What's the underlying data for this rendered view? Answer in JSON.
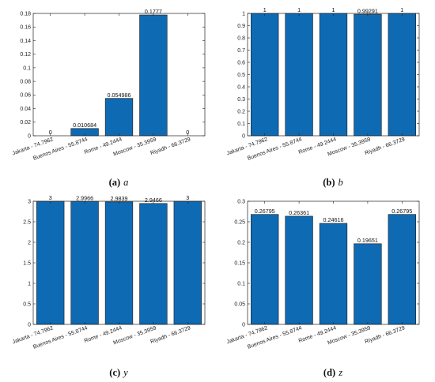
{
  "colors": {
    "bar": "#0f6ab4",
    "bar_edge": "#1a1a1a",
    "axis": "#222222"
  },
  "chart_data": [
    {
      "type": "bar",
      "caption_letter": "(a)",
      "caption_var": "a",
      "categories": [
        "Jakarta - 74.7962",
        "Buenos Aires - 55.8744",
        "Rome - 49.2444",
        "Moscow - 35.3959",
        "Riyadh - 66.3729"
      ],
      "values": [
        0,
        0.010684,
        0.054986,
        0.1777,
        0
      ],
      "data_labels": [
        "0",
        "0.010684",
        "0.054986",
        "0.1777",
        "0"
      ],
      "ylim": [
        0,
        0.18
      ],
      "yticks": [
        0,
        0.02,
        0.04,
        0.06,
        0.08,
        0.1,
        0.12,
        0.14,
        0.16,
        0.18
      ],
      "ytick_labels": [
        "0",
        "0.02",
        "0.04",
        "0.06",
        "0.08",
        "0.1",
        "0.12",
        "0.14",
        "0.16",
        "0.18"
      ],
      "grid": false
    },
    {
      "type": "bar",
      "caption_letter": "(b)",
      "caption_var": "b",
      "categories": [
        "Jakarta - 74.7962",
        "Buenos Aires - 55.8744",
        "Rome - 49.2444",
        "Moscow - 35.3959",
        "Riyadh - 66.3729"
      ],
      "values": [
        1,
        1,
        1,
        0.99291,
        1
      ],
      "data_labels": [
        "1",
        "1",
        "1",
        "0.99291",
        "1"
      ],
      "ylim": [
        0,
        1
      ],
      "yticks": [
        0,
        0.1,
        0.2,
        0.3,
        0.4,
        0.5,
        0.6,
        0.7,
        0.8,
        0.9,
        1
      ],
      "ytick_labels": [
        "0",
        "0.1",
        "0.2",
        "0.3",
        "0.4",
        "0.5",
        "0.6",
        "0.7",
        "0.8",
        "0.9",
        "1"
      ],
      "grid": false
    },
    {
      "type": "bar",
      "caption_letter": "(c)",
      "caption_var": "y",
      "categories": [
        "Jakarta - 74.7962",
        "Buenos Aires - 55.8744",
        "Rome - 49.2444",
        "Moscow - 35.3959",
        "Riyadh - 66.3729"
      ],
      "values": [
        3,
        2.9966,
        2.9839,
        2.9466,
        3
      ],
      "data_labels": [
        "3",
        "2.9966",
        "2.9839",
        "2.9466",
        "3"
      ],
      "ylim": [
        0,
        3
      ],
      "yticks": [
        0,
        0.5,
        1,
        1.5,
        2,
        2.5,
        3
      ],
      "ytick_labels": [
        "0",
        "0.5",
        "1",
        "1.5",
        "2",
        "2.5",
        "3"
      ],
      "grid": false
    },
    {
      "type": "bar",
      "caption_letter": "(d)",
      "caption_var": "z",
      "categories": [
        "Jakarta - 74.7962",
        "Buenos Aires - 55.8744",
        "Rome - 49.2444",
        "Moscow - 35.3959",
        "Riyadh - 66.3729"
      ],
      "values": [
        0.26795,
        0.26361,
        0.24616,
        0.19651,
        0.26795
      ],
      "data_labels": [
        "0.26795",
        "0.26361",
        "0.24616",
        "0.19651",
        "0.26795"
      ],
      "ylim": [
        0,
        0.3
      ],
      "yticks": [
        0,
        0.05,
        0.1,
        0.15,
        0.2,
        0.25,
        0.3
      ],
      "ytick_labels": [
        "0",
        "0.05",
        "0.1",
        "0.15",
        "0.2",
        "0.25",
        "0.3"
      ],
      "grid": false
    }
  ]
}
